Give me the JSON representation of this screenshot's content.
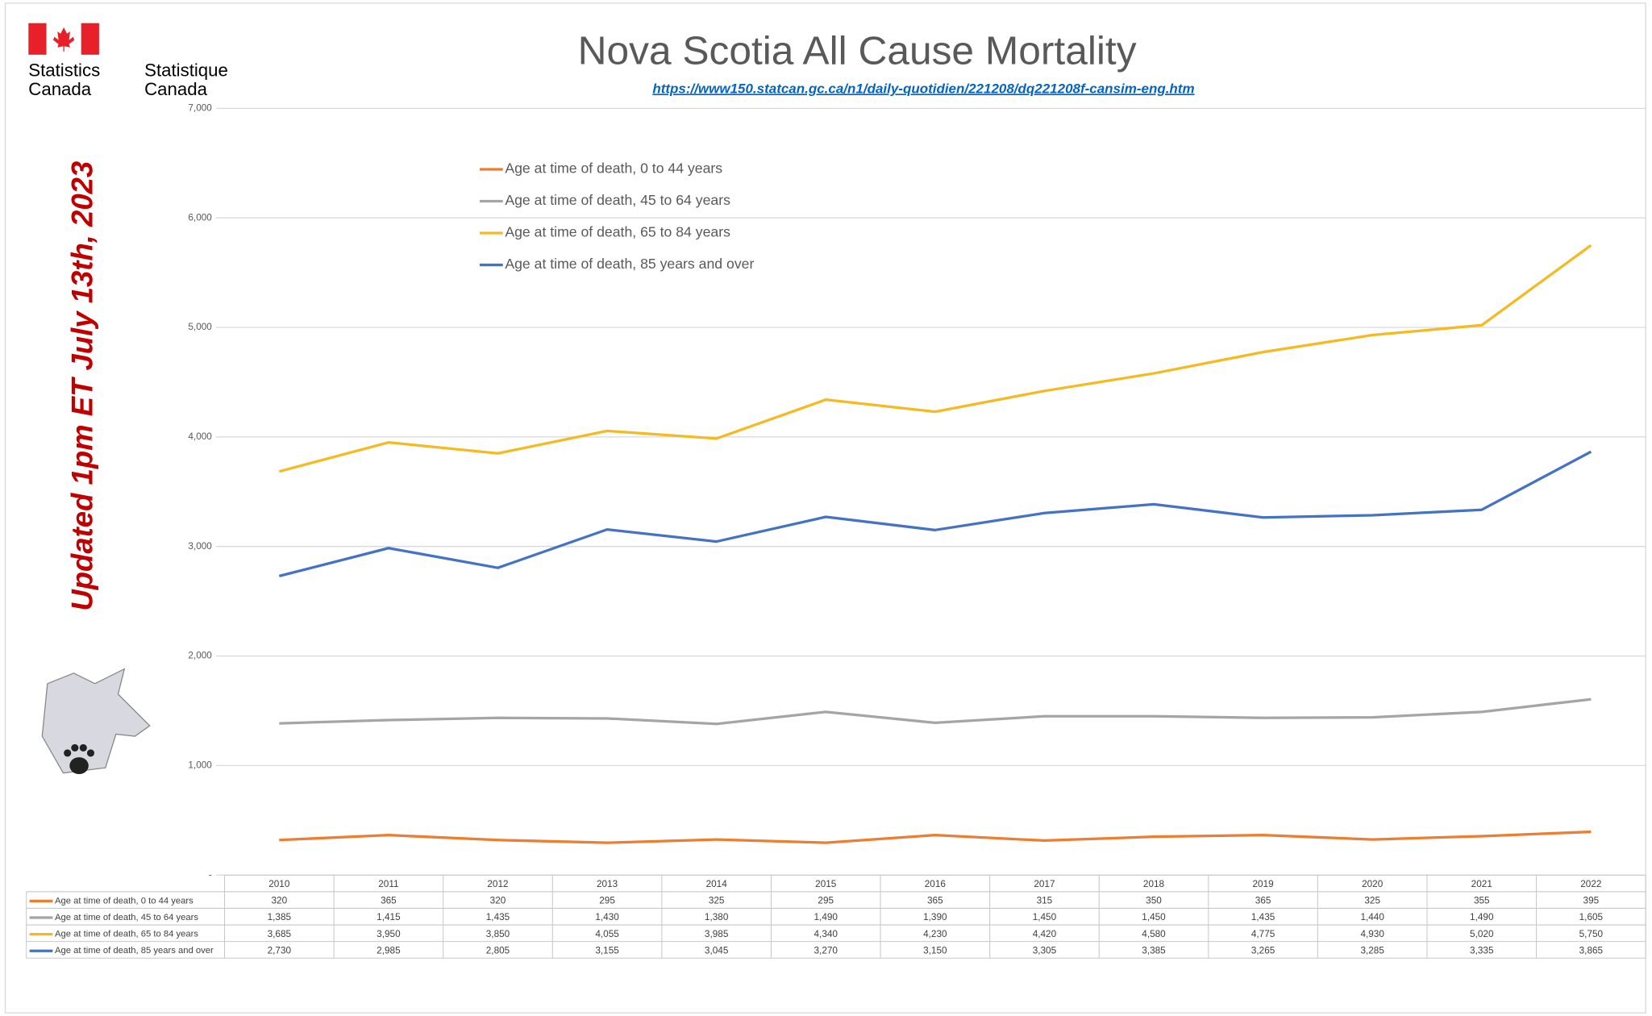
{
  "chart_data": {
    "type": "line",
    "title": "Nova Scotia All Cause Mortality",
    "subtitle": "https://www150.statcan.gc.ca/n1/daily-quotidien/221208/dq221208f-cansim-eng.htm",
    "annotation": "Updated 1pm ET July 13th, 2023",
    "categories": [
      "2010",
      "2011",
      "2012",
      "2013",
      "2014",
      "2015",
      "2016",
      "2017",
      "2018",
      "2019",
      "2020",
      "2021",
      "2022"
    ],
    "series": [
      {
        "name": "Age at time of death, 0 to 44 years",
        "color": "#ED7D31",
        "values": [
          320,
          365,
          320,
          295,
          325,
          295,
          365,
          315,
          350,
          365,
          325,
          355,
          395
        ]
      },
      {
        "name": "Age at time of death, 45 to 64 years",
        "color": "#A5A5A5",
        "values": [
          1385,
          1415,
          1435,
          1430,
          1380,
          1490,
          1390,
          1450,
          1450,
          1435,
          1440,
          1490,
          1605
        ],
        "value_labels": [
          "1,385",
          "1,415",
          "1,435",
          "1,430",
          "1,380",
          "1,490",
          "1,390",
          "1,450",
          "1,450",
          "1,435",
          "1,440",
          "1,490",
          "1,605"
        ]
      },
      {
        "name": "Age at time of death, 65 to 84 years",
        "color": "#F5B921",
        "values": [
          3685,
          3950,
          3850,
          4055,
          3985,
          4340,
          4230,
          4420,
          4580,
          4775,
          4930,
          5020,
          5750
        ],
        "value_labels": [
          "3,685",
          "3,950",
          "3,850",
          "4,055",
          "3,985",
          "4,340",
          "4,230",
          "4,420",
          "4,580",
          "4,775",
          "4,930",
          "5,020",
          "5,750"
        ]
      },
      {
        "name": "Age at time of death, 85 years and over",
        "color": "#4472C4",
        "values": [
          2730,
          2985,
          2805,
          3155,
          3045,
          3270,
          3150,
          3305,
          3385,
          3265,
          3285,
          3335,
          3865
        ],
        "value_labels": [
          "2,730",
          "2,985",
          "2,805",
          "3,155",
          "3,045",
          "3,270",
          "3,150",
          "3,305",
          "3,385",
          "3,265",
          "3,285",
          "3,335",
          "3,865"
        ]
      }
    ],
    "ylim": [
      0,
      7000
    ],
    "yticks": [
      {
        "value": 0,
        "label": "-"
      },
      {
        "value": 1000,
        "label": "1,000"
      },
      {
        "value": 2000,
        "label": "2,000"
      },
      {
        "value": 3000,
        "label": "3,000"
      },
      {
        "value": 4000,
        "label": "4,000"
      },
      {
        "value": 5000,
        "label": "5,000"
      },
      {
        "value": 6000,
        "label": "6,000"
      },
      {
        "value": 7000,
        "label": "7,000"
      }
    ],
    "grid": true
  },
  "branding": {
    "english": [
      "Statistics",
      "Canada"
    ],
    "french": [
      "Statistique",
      "Canada"
    ]
  }
}
